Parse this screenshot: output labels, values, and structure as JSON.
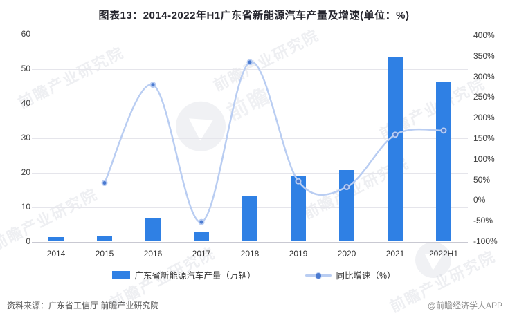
{
  "title": "图表13：2014-2022年H1广东省新能源汽车产量及增速(单位：%)",
  "chart_data": {
    "type": "bar",
    "combo": "bar+line dual-axis",
    "categories": [
      "2014",
      "2015",
      "2016",
      "2017",
      "2018",
      "2019",
      "2020",
      "2021",
      "2022H1"
    ],
    "series": [
      {
        "name": "广东省新能源汽车产量（万辆）",
        "type": "bar",
        "axis": "left",
        "color": "#2f80e4",
        "values": [
          1.2,
          1.7,
          6.8,
          2.9,
          13.2,
          19.0,
          20.7,
          53.4,
          46.0
        ]
      },
      {
        "name": "同比增速（%）",
        "type": "line",
        "axis": "right",
        "color": "#b9cdf2",
        "marker_color": "#4a7ad0",
        "smooth": true,
        "values": [
          null,
          40,
          278,
          -55,
          333,
          44,
          30,
          157,
          167
        ]
      }
    ],
    "left_axis": {
      "min": 0,
      "max": 60,
      "step": 10,
      "ticks": [
        "60",
        "50",
        "40",
        "30",
        "20",
        "10",
        "0"
      ]
    },
    "right_axis": {
      "min": -100,
      "max": 400,
      "step": 50,
      "ticks": [
        "400%",
        "350%",
        "300%",
        "250%",
        "200%",
        "150%",
        "100%",
        "50%",
        "0%",
        "-50%",
        "-100%"
      ]
    },
    "grid": true,
    "legend_position": "bottom"
  },
  "legend": {
    "bar_label": "广东省新能源汽车产量（万辆）",
    "line_label": "同比增速（%）"
  },
  "footer": {
    "source": "资料来源：广东省工信厅 前瞻产业研究院",
    "credit": "@前瞻经济学人APP"
  },
  "watermark": {
    "text": "前瞻产业研究院",
    "brand": "前瞻"
  },
  "colors": {
    "bar": "#2f80e4",
    "line": "#b9cdf2",
    "marker": "#4a7ad0",
    "grid": "#e5e5eb",
    "axis_line": "#c9c9d2",
    "title": "#27272f",
    "tick": "#404040",
    "source": "#595959",
    "credit": "#8c8c8c"
  }
}
